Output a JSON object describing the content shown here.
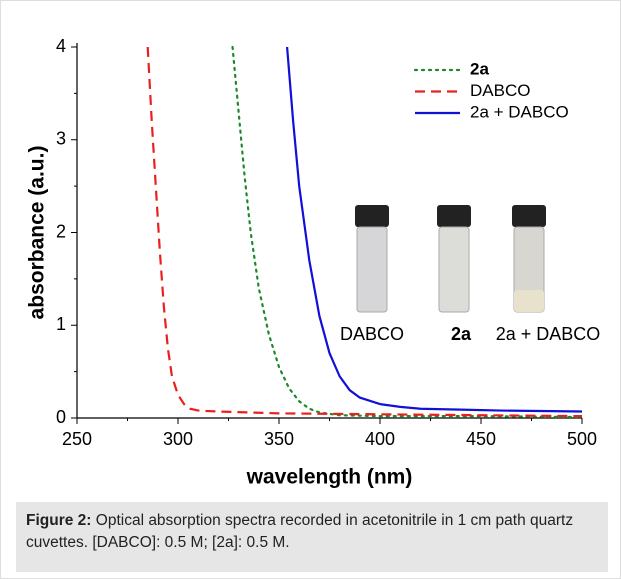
{
  "chart_data": {
    "type": "line",
    "xlabel": "wavelength (nm)",
    "ylabel": "absorbance (a.u.)",
    "xlim": [
      250,
      500
    ],
    "xticks": [
      250,
      300,
      350,
      400,
      450,
      500
    ],
    "ylim": [
      0,
      4
    ],
    "yticks": [
      0,
      1,
      2,
      3,
      4
    ],
    "series": [
      {
        "name": "2a",
        "color": "#1a8a2a",
        "style": "dotted",
        "x": [
          327,
          330,
          333,
          336,
          340,
          345,
          350,
          355,
          360,
          365,
          370,
          380,
          400,
          450,
          500
        ],
        "values": [
          4,
          3.3,
          2.6,
          2.0,
          1.4,
          0.9,
          0.55,
          0.32,
          0.18,
          0.1,
          0.06,
          0.03,
          0.02,
          0.02,
          0.01
        ]
      },
      {
        "name": "DABCO",
        "color": "#e8211d",
        "style": "dashed",
        "x": [
          285,
          287,
          289,
          291,
          293,
          295,
          297,
          300,
          303,
          306,
          310,
          320,
          350,
          400,
          450,
          500
        ],
        "values": [
          4,
          3.2,
          2.5,
          1.8,
          1.2,
          0.75,
          0.45,
          0.25,
          0.15,
          0.1,
          0.08,
          0.07,
          0.05,
          0.04,
          0.03,
          0.02
        ]
      },
      {
        "name": "2a + DABCO",
        "color": "#1010d8",
        "style": "solid",
        "x": [
          354,
          357,
          360,
          365,
          370,
          375,
          380,
          385,
          390,
          400,
          410,
          420,
          440,
          460,
          500
        ],
        "values": [
          4,
          3.2,
          2.5,
          1.7,
          1.1,
          0.7,
          0.45,
          0.3,
          0.22,
          0.15,
          0.12,
          0.1,
          0.09,
          0.08,
          0.07
        ]
      }
    ],
    "annotations": [
      "DABCO",
      "2a",
      "2a + DABCO"
    ]
  },
  "caption": {
    "label": "Figure 2:",
    "text": "Optical absorption spectra recorded in acetonitrile in 1 cm path quartz cuvettes. [DABCO]: 0.5 M; [2a]: 0.5 M."
  }
}
